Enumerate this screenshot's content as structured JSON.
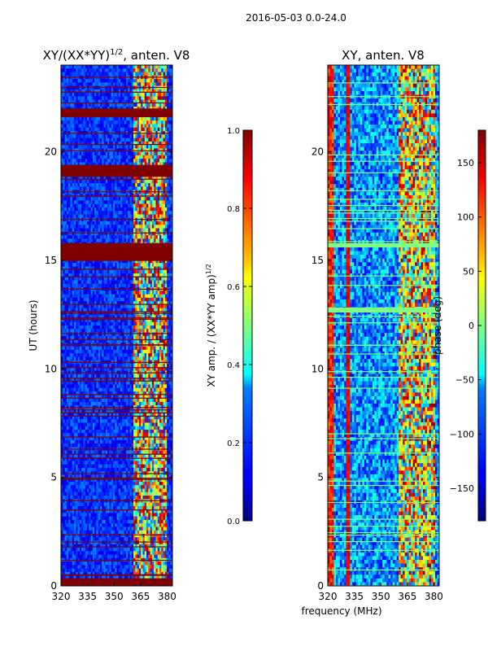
{
  "figure_title": "2016-05-03 0.0-24.0",
  "colors": {
    "dark_red": "#800000",
    "dark_blue": "#00008f",
    "mid_blue": "#0000ff",
    "cyan": "#00ffff",
    "yellow": "#ffff00",
    "red": "#ff0000",
    "light_green": "#80ff80"
  },
  "chart_data": [
    {
      "type": "heatmap",
      "title_prefix": "XY/(XX*YY)",
      "title_exp": "1/2",
      "title_suffix": ", anten. V8",
      "ylabel": "UT (hours)",
      "xlabel": "",
      "xlim": [
        320,
        383
      ],
      "ylim": [
        0,
        24
      ],
      "xticks": [
        320,
        335,
        350,
        365,
        380
      ],
      "yticks": [
        0,
        5,
        10,
        15,
        20
      ],
      "colorbar": {
        "label_prefix": "XY amp. / (XX*YY amp)",
        "label_exp": "1/2",
        "range": [
          0.0,
          1.0
        ],
        "ticks": [
          "0.0",
          "0.2",
          "0.4",
          "0.6",
          "0.8",
          "1.0"
        ]
      },
      "saturated_bands_hours": [
        [
          0.0,
          0.35
        ],
        [
          15.0,
          15.8
        ],
        [
          18.85,
          19.4
        ],
        [
          21.6,
          22.0
        ]
      ]
    },
    {
      "type": "heatmap",
      "title": "XY, anten. V8",
      "ylabel": "",
      "xlabel": "frequency (MHz)",
      "xlim": [
        320,
        383
      ],
      "ylim": [
        0,
        24
      ],
      "xticks": [
        320,
        335,
        350,
        365,
        380
      ],
      "yticks": [
        0,
        5,
        10,
        15,
        20
      ],
      "colorbar": {
        "label": "phase (deg)",
        "range": [
          -180,
          180
        ],
        "ticks": [
          "150",
          "100",
          "50",
          "0",
          "−50",
          "−100",
          "−150"
        ]
      },
      "gap_bands_hours": [
        [
          15.6,
          15.8
        ],
        [
          12.6,
          12.8
        ]
      ]
    }
  ]
}
